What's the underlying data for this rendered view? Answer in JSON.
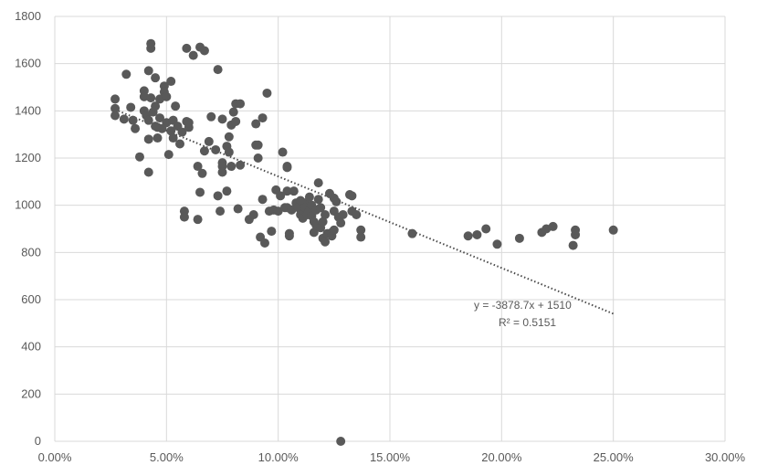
{
  "chart_data": {
    "type": "scatter",
    "title": "",
    "xlabel": "",
    "ylabel": "",
    "xlim": [
      0,
      0.3
    ],
    "ylim": [
      0,
      1800
    ],
    "x_ticks": [
      "0.00%",
      "5.00%",
      "10.00%",
      "15.00%",
      "20.00%",
      "25.00%",
      "30.00%"
    ],
    "y_ticks": [
      "0",
      "200",
      "400",
      "600",
      "800",
      "1000",
      "1200",
      "1400",
      "1600",
      "1800"
    ],
    "grid": true,
    "legend": "none",
    "marker_color": "#595959",
    "trendline": {
      "type": "linear",
      "slope": -3878.7,
      "intercept": 1510,
      "x_range": [
        0.027,
        0.25
      ],
      "equation_label": "y = -3878.7x + 1510",
      "r2_label": "R² = 0.5151"
    },
    "points": [
      [
        0.027,
        1450
      ],
      [
        0.027,
        1410
      ],
      [
        0.027,
        1380
      ],
      [
        0.031,
        1365
      ],
      [
        0.032,
        1555
      ],
      [
        0.034,
        1415
      ],
      [
        0.035,
        1360
      ],
      [
        0.036,
        1325
      ],
      [
        0.038,
        1205
      ],
      [
        0.04,
        1485
      ],
      [
        0.04,
        1460
      ],
      [
        0.04,
        1400
      ],
      [
        0.041,
        1380
      ],
      [
        0.042,
        1570
      ],
      [
        0.042,
        1360
      ],
      [
        0.042,
        1280
      ],
      [
        0.042,
        1140
      ],
      [
        0.043,
        1665
      ],
      [
        0.043,
        1685
      ],
      [
        0.043,
        1455
      ],
      [
        0.044,
        1395
      ],
      [
        0.045,
        1540
      ],
      [
        0.045,
        1420
      ],
      [
        0.045,
        1335
      ],
      [
        0.046,
        1330
      ],
      [
        0.046,
        1285
      ],
      [
        0.047,
        1450
      ],
      [
        0.047,
        1370
      ],
      [
        0.048,
        1325
      ],
      [
        0.049,
        1505
      ],
      [
        0.049,
        1480
      ],
      [
        0.05,
        1460
      ],
      [
        0.05,
        1350
      ],
      [
        0.051,
        1215
      ],
      [
        0.052,
        1525
      ],
      [
        0.052,
        1315
      ],
      [
        0.053,
        1285
      ],
      [
        0.053,
        1360
      ],
      [
        0.054,
        1420
      ],
      [
        0.055,
        1335
      ],
      [
        0.056,
        1260
      ],
      [
        0.057,
        1310
      ],
      [
        0.058,
        975
      ],
      [
        0.058,
        950
      ],
      [
        0.059,
        1665
      ],
      [
        0.059,
        1355
      ],
      [
        0.06,
        1330
      ],
      [
        0.06,
        1350
      ],
      [
        0.062,
        1635
      ],
      [
        0.064,
        1165
      ],
      [
        0.064,
        940
      ],
      [
        0.065,
        1670
      ],
      [
        0.065,
        1055
      ],
      [
        0.066,
        1135
      ],
      [
        0.067,
        1655
      ],
      [
        0.067,
        1230
      ],
      [
        0.069,
        1270
      ],
      [
        0.07,
        1375
      ],
      [
        0.072,
        1235
      ],
      [
        0.073,
        1575
      ],
      [
        0.073,
        1040
      ],
      [
        0.074,
        975
      ],
      [
        0.075,
        1365
      ],
      [
        0.075,
        1180
      ],
      [
        0.075,
        1165
      ],
      [
        0.075,
        1140
      ],
      [
        0.077,
        1250
      ],
      [
        0.077,
        1060
      ],
      [
        0.078,
        1290
      ],
      [
        0.078,
        1225
      ],
      [
        0.079,
        1340
      ],
      [
        0.079,
        1165
      ],
      [
        0.08,
        1395
      ],
      [
        0.081,
        1430
      ],
      [
        0.081,
        1355
      ],
      [
        0.082,
        985
      ],
      [
        0.083,
        1430
      ],
      [
        0.083,
        1170
      ],
      [
        0.087,
        940
      ],
      [
        0.089,
        960
      ],
      [
        0.09,
        1255
      ],
      [
        0.09,
        1345
      ],
      [
        0.091,
        1255
      ],
      [
        0.091,
        1200
      ],
      [
        0.092,
        865
      ],
      [
        0.093,
        1370
      ],
      [
        0.093,
        1025
      ],
      [
        0.094,
        840
      ],
      [
        0.095,
        1475
      ],
      [
        0.096,
        975
      ],
      [
        0.097,
        890
      ],
      [
        0.098,
        980
      ],
      [
        0.099,
        1065
      ],
      [
        0.1,
        975
      ],
      [
        0.101,
        1040
      ],
      [
        0.102,
        1225
      ],
      [
        0.103,
        990
      ],
      [
        0.104,
        1060
      ],
      [
        0.104,
        1165
      ],
      [
        0.104,
        990
      ],
      [
        0.105,
        880
      ],
      [
        0.105,
        870
      ],
      [
        0.106,
        980
      ],
      [
        0.107,
        1060
      ],
      [
        0.108,
        1010
      ],
      [
        0.109,
        990
      ],
      [
        0.11,
        960
      ],
      [
        0.11,
        1020
      ],
      [
        0.111,
        945
      ],
      [
        0.112,
        1010
      ],
      [
        0.112,
        990
      ],
      [
        0.113,
        960
      ],
      [
        0.114,
        1035
      ],
      [
        0.114,
        980
      ],
      [
        0.115,
        955
      ],
      [
        0.115,
        1000
      ],
      [
        0.116,
        930
      ],
      [
        0.116,
        885
      ],
      [
        0.117,
        915
      ],
      [
        0.117,
        980
      ],
      [
        0.118,
        1095
      ],
      [
        0.118,
        1025
      ],
      [
        0.119,
        990
      ],
      [
        0.119,
        905
      ],
      [
        0.12,
        860
      ],
      [
        0.12,
        930
      ],
      [
        0.121,
        960
      ],
      [
        0.121,
        845
      ],
      [
        0.122,
        880
      ],
      [
        0.123,
        1050
      ],
      [
        0.124,
        885
      ],
      [
        0.124,
        870
      ],
      [
        0.125,
        975
      ],
      [
        0.125,
        1030
      ],
      [
        0.125,
        895
      ],
      [
        0.126,
        1015
      ],
      [
        0.127,
        950
      ],
      [
        0.128,
        0
      ],
      [
        0.128,
        925
      ],
      [
        0.129,
        960
      ],
      [
        0.132,
        1045
      ],
      [
        0.133,
        1040
      ],
      [
        0.133,
        975
      ],
      [
        0.135,
        960
      ],
      [
        0.137,
        895
      ],
      [
        0.137,
        865
      ],
      [
        0.16,
        880
      ],
      [
        0.185,
        870
      ],
      [
        0.189,
        875
      ],
      [
        0.193,
        900
      ],
      [
        0.198,
        835
      ],
      [
        0.208,
        860
      ],
      [
        0.218,
        885
      ],
      [
        0.22,
        900
      ],
      [
        0.223,
        910
      ],
      [
        0.232,
        830
      ],
      [
        0.233,
        875
      ],
      [
        0.233,
        895
      ],
      [
        0.25,
        895
      ],
      [
        0.104,
        1160
      ]
    ]
  }
}
